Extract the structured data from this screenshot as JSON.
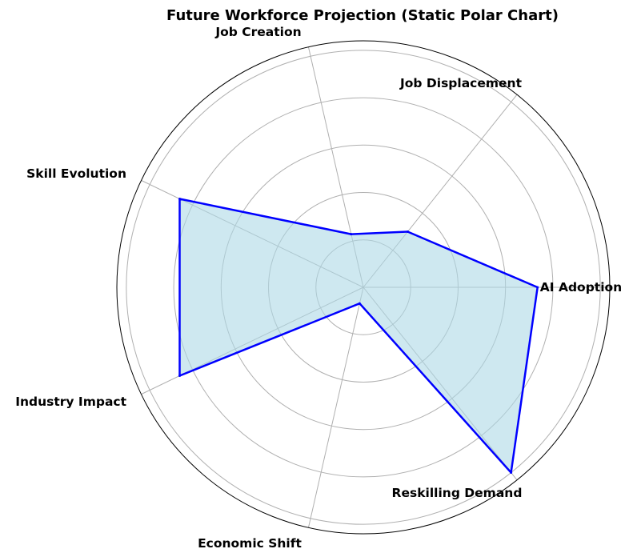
{
  "chart_data": {
    "type": "radar",
    "title": "Future Workforce Projection (Static Polar Chart)",
    "categories": [
      "AI Adoption",
      "Job Displacement",
      "Job Creation",
      "Skill Evolution",
      "Industry Impact",
      "Economic Shift",
      "Reskilling Demand"
    ],
    "angles_deg": [
      0,
      51.43,
      102.86,
      154.29,
      205.71,
      257.14,
      308.57
    ],
    "series": [
      {
        "values": [
          0.735,
          0.3,
          0.23,
          0.86,
          0.86,
          0.07,
          1.0
        ],
        "line_color": "#0000ff",
        "fill_color": "#add8e6",
        "fill_alpha": 0.6
      }
    ],
    "rlim": [
      0,
      1.04
    ],
    "radial_gridlines": [
      0.2,
      0.4,
      0.6,
      0.8,
      1.0
    ],
    "radial_tick_labels_visible": false,
    "grid": true
  }
}
